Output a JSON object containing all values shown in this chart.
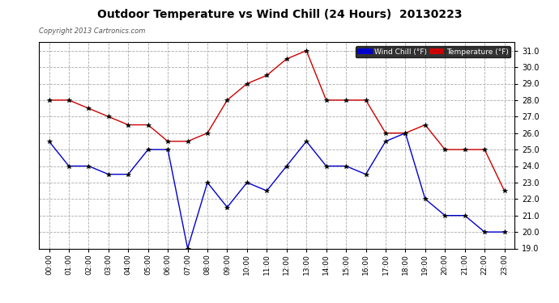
{
  "title": "Outdoor Temperature vs Wind Chill (24 Hours)  20130223",
  "copyright": "Copyright 2013 Cartronics.com",
  "hours": [
    "00:00",
    "01:00",
    "02:00",
    "03:00",
    "04:00",
    "05:00",
    "06:00",
    "07:00",
    "08:00",
    "09:00",
    "10:00",
    "11:00",
    "12:00",
    "13:00",
    "14:00",
    "15:00",
    "16:00",
    "17:00",
    "18:00",
    "19:00",
    "20:00",
    "21:00",
    "22:00",
    "23:00"
  ],
  "temperature": [
    28.0,
    28.0,
    27.5,
    27.0,
    26.5,
    26.5,
    25.5,
    25.5,
    26.0,
    28.0,
    29.0,
    29.5,
    30.5,
    31.0,
    28.0,
    28.0,
    28.0,
    26.0,
    26.0,
    26.5,
    25.0,
    25.0,
    25.0,
    22.5
  ],
  "wind_chill": [
    25.5,
    24.0,
    24.0,
    23.5,
    23.5,
    25.0,
    25.0,
    19.0,
    23.0,
    21.5,
    23.0,
    22.5,
    24.0,
    25.5,
    24.0,
    24.0,
    23.5,
    25.5,
    26.0,
    22.0,
    21.0,
    21.0,
    20.0,
    20.0
  ],
  "temp_color": "#cc0000",
  "wind_color": "#0000cc",
  "bg_color": "#ffffff",
  "plot_bg": "#ffffff",
  "grid_color": "#aaaaaa",
  "ylim_min": 19.0,
  "ylim_max": 31.5,
  "yticks": [
    19.0,
    20.0,
    21.0,
    22.0,
    23.0,
    24.0,
    25.0,
    26.0,
    27.0,
    28.0,
    29.0,
    30.0,
    31.0
  ],
  "legend_wind_color": "#0000cc",
  "legend_temp_color": "#cc0000",
  "legend_bg": "#000000",
  "legend_text_wind": "Wind Chill (°F)",
  "legend_text_temp": "Temperature (°F)",
  "figwidth": 6.9,
  "figheight": 3.75,
  "dpi": 100
}
